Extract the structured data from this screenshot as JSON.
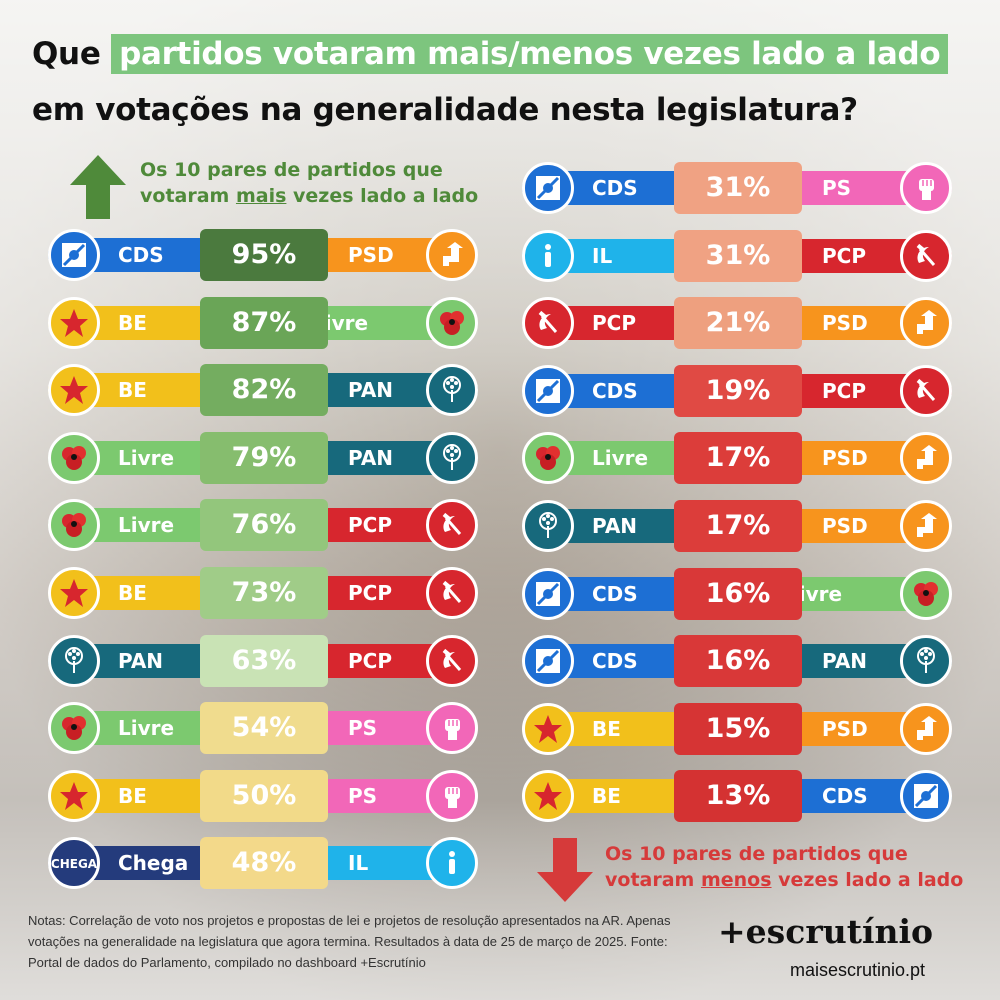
{
  "title": {
    "line1_pre": "Que",
    "line1_highlight": "partidos votaram mais/menos vezes lado a lado",
    "line2": "em votações na generalidade nesta legislatura?"
  },
  "legend_top": {
    "line1": "Os 10 pares de partidos que",
    "line2_pre": "votaram ",
    "line2_u": "mais",
    "line2_post": " vezes lado a lado"
  },
  "legend_bottom": {
    "line1": "Os 10 pares de partidos que",
    "line2_pre": "votaram ",
    "line2_u": "menos",
    "line2_post": " vezes lado a lado"
  },
  "party_colors": {
    "CDS": "#1d6fd4",
    "PSD": "#f7941d",
    "BE": "#f2c01b",
    "Livre": "#7cc96f",
    "PAN": "#17697c",
    "PCP": "#d7262e",
    "PS": "#f267b8",
    "IL": "#1fb3ea",
    "Chega": "#243b7c"
  },
  "party_icons": {
    "CDS": "cds-logo-icon",
    "PSD": "psd-arrow-icon",
    "BE": "be-star-icon",
    "Livre": "livre-poppy-icon",
    "PAN": "pan-tree-icon",
    "PCP": "pcp-hammer-sickle-icon",
    "PS": "ps-fist-icon",
    "IL": "il-i-icon",
    "Chega": "chega-logo-icon"
  },
  "most": [
    {
      "a": "CDS",
      "b": "PSD",
      "value": "95%",
      "color": "#4b7a3e"
    },
    {
      "a": "BE",
      "b": "Livre",
      "value": "87%",
      "color": "#6aa557"
    },
    {
      "a": "BE",
      "b": "PAN",
      "value": "82%",
      "color": "#74ad60"
    },
    {
      "a": "Livre",
      "b": "PAN",
      "value": "79%",
      "color": "#86bd6e"
    },
    {
      "a": "Livre",
      "b": "PCP",
      "value": "76%",
      "color": "#93c67c"
    },
    {
      "a": "BE",
      "b": "PCP",
      "value": "73%",
      "color": "#a0cc88"
    },
    {
      "a": "PAN",
      "b": "PCP",
      "value": "63%",
      "color": "#c9e3b5"
    },
    {
      "a": "Livre",
      "b": "PS",
      "value": "54%",
      "color": "#f0dc8e"
    },
    {
      "a": "BE",
      "b": "PS",
      "value": "50%",
      "color": "#f2da89"
    },
    {
      "a": "Chega",
      "b": "IL",
      "value": "48%",
      "color": "#f3d98a"
    }
  ],
  "least": [
    {
      "a": "CDS",
      "b": "PS",
      "value": "31%",
      "color": "#f0a283"
    },
    {
      "a": "IL",
      "b": "PCP",
      "value": "31%",
      "color": "#f0a283"
    },
    {
      "a": "PCP",
      "b": "PSD",
      "value": "21%",
      "color": "#eea07f"
    },
    {
      "a": "CDS",
      "b": "PCP",
      "value": "19%",
      "color": "#e04a44"
    },
    {
      "a": "Livre",
      "b": "PSD",
      "value": "17%",
      "color": "#dc3d3a"
    },
    {
      "a": "PAN",
      "b": "PSD",
      "value": "17%",
      "color": "#dc3d3a"
    },
    {
      "a": "CDS",
      "b": "Livre",
      "value": "16%",
      "color": "#d93838"
    },
    {
      "a": "CDS",
      "b": "PAN",
      "value": "16%",
      "color": "#d93838"
    },
    {
      "a": "BE",
      "b": "PSD",
      "value": "15%",
      "color": "#d63434"
    },
    {
      "a": "BE",
      "b": "CDS",
      "value": "13%",
      "color": "#d43232"
    }
  ],
  "notes": "Notas: Correlação de voto nos projetos e propostas de lei e projetos de resolução apresentados na AR. Apenas votações na generalidade na legislatura que agora termina. Resultados à data de 25 de março de 2025. Fonte: Portal de dados do Parlamento, compilado no dashboard +Escrutínio",
  "brand": "+escrutínio",
  "site": "maisescrutinio.pt"
}
